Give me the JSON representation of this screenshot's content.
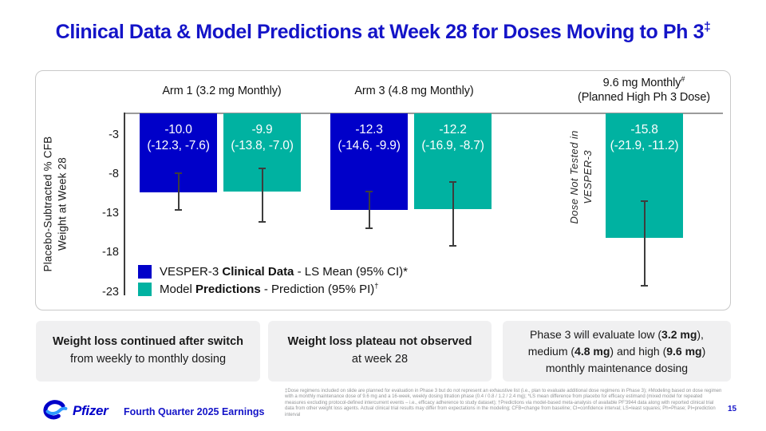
{
  "colors": {
    "clinical": "#0000c9",
    "prediction": "#00b2a1",
    "title_blue": "#1414c8",
    "axis_gray": "#9b9b9b",
    "callout_bg": "#f0f0f1"
  },
  "title": {
    "segments": [
      {
        "t": "Clinical Data & Model Predictions at Week 28 for Doses Moving to Ph 3"
      },
      {
        "t": "‡",
        "sup": true
      }
    ]
  },
  "chart_data": {
    "type": "bar",
    "ylabel_lines": [
      "Placebo-Subtracted % CFB",
      "Weight at Week 28"
    ],
    "yticks": [
      -3,
      -8,
      -13,
      -18,
      -23
    ],
    "ylim": [
      -24,
      0
    ],
    "grid": false,
    "legend_position": "bottom-left-inside",
    "groups": [
      {
        "label": "Arm 1 (3.2 mg Monthly)"
      },
      {
        "label": "Arm 3 (4.8 mg Monthly)"
      },
      {
        "label_line1_segments": [
          {
            "t": "9.6 mg Monthly"
          },
          {
            "t": "#",
            "sup": true
          }
        ],
        "label_line2": "(Planned High Ph 3 Dose)"
      }
    ],
    "bars": [
      {
        "group": "Arm 1 (3.2 mg Monthly)",
        "series": "clinical",
        "value": -10.0,
        "ci": [
          -12.3,
          -7.6
        ],
        "display": [
          "-10.0",
          "(-12.3, -7.6)"
        ]
      },
      {
        "group": "Arm 1 (3.2 mg Monthly)",
        "series": "prediction",
        "value": -9.9,
        "ci": [
          -13.8,
          -7.0
        ],
        "display": [
          "-9.9",
          "(-13.8, -7.0)"
        ]
      },
      {
        "group": "Arm 3 (4.8 mg Monthly)",
        "series": "clinical",
        "value": -12.3,
        "ci": [
          -14.6,
          -9.9
        ],
        "display": [
          "-12.3",
          "(-14.6, -9.9)"
        ]
      },
      {
        "group": "Arm 3 (4.8 mg Monthly)",
        "series": "prediction",
        "value": -12.2,
        "ci": [
          -16.9,
          -8.7
        ],
        "display": [
          "-12.2",
          "(-16.9, -8.7)"
        ]
      },
      {
        "group": "9.6 mg Monthly (Planned High Ph 3 Dose)",
        "series": "prediction",
        "value": -15.8,
        "ci": [
          -21.9,
          -11.2
        ],
        "display": [
          "-15.8",
          "(-21.9, -11.2)"
        ]
      }
    ],
    "note_lines": [
      "Dose Not Tested in",
      "VESPER-3"
    ]
  },
  "legend": {
    "clinical_segments": [
      {
        "t": "VESPER-3 "
      },
      {
        "t": "Clinical Data",
        "b": true
      },
      {
        "t": " - LS Mean (95% CI)*"
      }
    ],
    "prediction_segments": [
      {
        "t": "Model "
      },
      {
        "t": "Predictions",
        "b": true
      },
      {
        "t": " - Prediction (95% PI)"
      },
      {
        "t": "†",
        "sup": true
      }
    ]
  },
  "callouts": [
    {
      "line1": "Weight loss continued after switch",
      "line2": "from weekly to monthly dosing"
    },
    {
      "line1": "Weight loss plateau not observed",
      "line2": "at week 28"
    },
    {
      "line1_segments": [
        {
          "t": "Phase 3 will evaluate low ("
        },
        {
          "t": "3.2 mg",
          "b": true
        },
        {
          "t": "),"
        }
      ],
      "line2_segments": [
        {
          "t": "medium ("
        },
        {
          "t": "4.8 mg",
          "b": true
        },
        {
          "t": ") and high ("
        },
        {
          "t": "9.6 mg",
          "b": true
        },
        {
          "t": ")"
        }
      ],
      "line3": "monthly maintenance dosing"
    }
  ],
  "footer": {
    "brand": "Pfizer",
    "tagline": "Fourth Quarter 2025 Earnings",
    "page_number": "15",
    "footnote": "‡Dose regimens included on slide are planned for evaluation in Phase 3 but do not represent an exhaustive list (i.e., plan to evaluate additional dose regimens in Phase 3); #Modeling based on dose regimen with a monthly maintenance dose of 9.6 mg and a 16-week, weekly dosing titration phase (0.4 / 0.8 / 1.2 / 2.4 mg); *LS mean difference from placebo for efficacy estimand (mixed model for repeated measures excluding protocol-defined intercurrent events – i.e., efficacy adherence to study dataset); †Predictions via model-based meta-analysis of available PF'3944 data along with reported clinical trial data from other weight loss agents. Actual clinical trial results may differ from expectations in the modeling; CFB=change from baseline; CI=confidence interval; LS=least squares; Ph=Phase; PI=prediction interval"
  }
}
